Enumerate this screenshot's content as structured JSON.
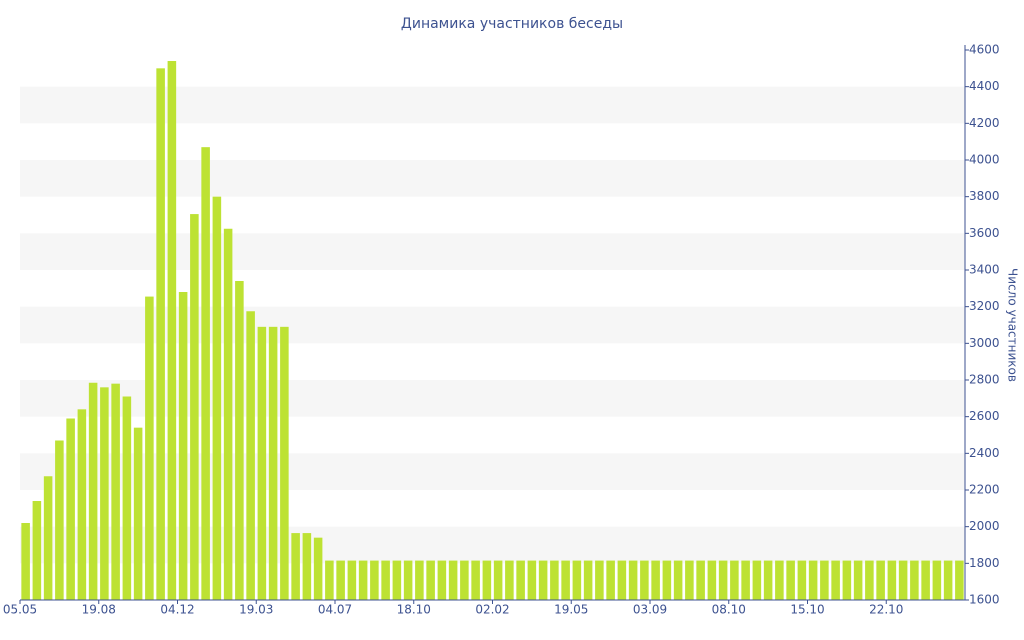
{
  "chart_data": {
    "type": "bar",
    "title": "Динамика участников беседы",
    "y_label": "Число участников",
    "categories": [
      "05.05",
      null,
      null,
      null,
      null,
      null,
      null,
      "19.08",
      null,
      null,
      null,
      null,
      null,
      null,
      "04.12",
      null,
      null,
      null,
      null,
      null,
      null,
      "19.03",
      null,
      null,
      null,
      null,
      null,
      null,
      "04.07",
      null,
      null,
      null,
      null,
      null,
      null,
      "18.10",
      null,
      null,
      null,
      null,
      null,
      null,
      "02.02",
      null,
      null,
      null,
      null,
      null,
      null,
      "19.05",
      null,
      null,
      null,
      null,
      null,
      null,
      "03.09",
      null,
      null,
      null,
      null,
      null,
      null,
      "08.10",
      null,
      null,
      null,
      null,
      null,
      null,
      "15.10",
      null,
      null,
      null,
      null,
      null,
      null,
      "22.10",
      null,
      null,
      null,
      null,
      null,
      null
    ],
    "values": [
      2020,
      2140,
      2275,
      2470,
      2590,
      2640,
      2785,
      2760,
      2780,
      2710,
      2540,
      3255,
      4500,
      4540,
      3280,
      3705,
      4070,
      3800,
      3625,
      3340,
      3175,
      3090,
      3090,
      3090,
      1965,
      1965,
      1940,
      1815,
      1815,
      1815,
      1815,
      1815,
      1815,
      1815,
      1815,
      1815,
      1815,
      1815,
      1815,
      1815,
      1815,
      1815,
      1815,
      1815,
      1815,
      1815,
      1815,
      1815,
      1815,
      1815,
      1815,
      1815,
      1815,
      1815,
      1815,
      1815,
      1815,
      1815,
      1815,
      1815,
      1815,
      1815,
      1815,
      1815,
      1815,
      1815,
      1815,
      1815,
      1815,
      1815,
      1815,
      1815,
      1815,
      1815,
      1815,
      1815,
      1815,
      1815,
      1815,
      1815,
      1815,
      1815,
      1815,
      1815
    ],
    "color": "#bde233",
    "ylim": [
      1600,
      4600
    ],
    "yticks": [
      1600,
      1800,
      2000,
      2200,
      2400,
      2600,
      2800,
      3000,
      3200,
      3400,
      3600,
      3800,
      4000,
      4200,
      4400,
      4600
    ],
    "grid": true
  }
}
